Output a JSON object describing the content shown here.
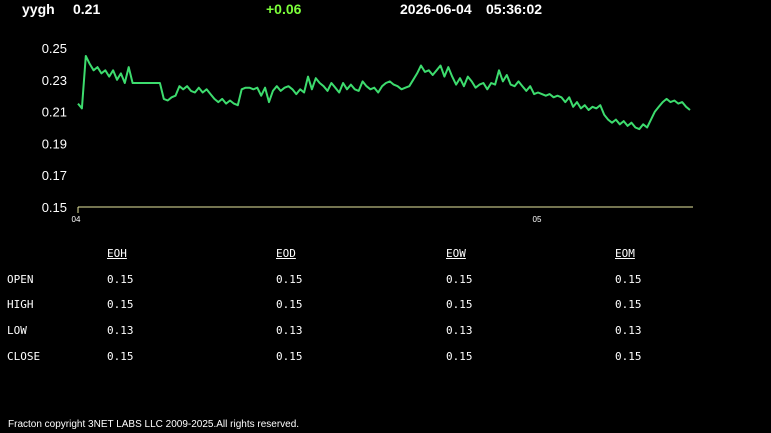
{
  "header": {
    "symbol": "yygh",
    "price": "0.21",
    "change": "+0.06",
    "date": "2026-06-04",
    "time": "05:36:02"
  },
  "chart_data": {
    "type": "line",
    "ylim": [
      0.15,
      0.25
    ],
    "y_ticks": [
      "0.25",
      "0.23",
      "0.21",
      "0.19",
      "0.17",
      "0.15"
    ],
    "x_tick_labels": [
      "04",
      "05"
    ],
    "line_color": "#3ddc6e",
    "series": [
      {
        "values": [
          0.215,
          0.212,
          0.245,
          0.24,
          0.236,
          0.238,
          0.234,
          0.236,
          0.232,
          0.236,
          0.23,
          0.234,
          0.228,
          0.238,
          0.228,
          0.228,
          0.228,
          0.228,
          0.228,
          0.228,
          0.228,
          0.228,
          0.218,
          0.217,
          0.219,
          0.22,
          0.226,
          0.224,
          0.226,
          0.223,
          0.222,
          0.225,
          0.222,
          0.224,
          0.221,
          0.218,
          0.216,
          0.218,
          0.215,
          0.217,
          0.215,
          0.214,
          0.224,
          0.225,
          0.225,
          0.224,
          0.225,
          0.22,
          0.225,
          0.216,
          0.223,
          0.226,
          0.223,
          0.225,
          0.226,
          0.224,
          0.221,
          0.224,
          0.222,
          0.232,
          0.224,
          0.231,
          0.228,
          0.226,
          0.223,
          0.228,
          0.225,
          0.222,
          0.228,
          0.224,
          0.227,
          0.224,
          0.223,
          0.229,
          0.226,
          0.224,
          0.225,
          0.222,
          0.226,
          0.228,
          0.229,
          0.227,
          0.226,
          0.224,
          0.225,
          0.226,
          0.23,
          0.234,
          0.239,
          0.235,
          0.236,
          0.233,
          0.236,
          0.239,
          0.232,
          0.238,
          0.232,
          0.227,
          0.231,
          0.226,
          0.232,
          0.229,
          0.225,
          0.227,
          0.228,
          0.224,
          0.228,
          0.227,
          0.236,
          0.229,
          0.233,
          0.227,
          0.226,
          0.229,
          0.226,
          0.223,
          0.226,
          0.221,
          0.222,
          0.221,
          0.22,
          0.221,
          0.219,
          0.22,
          0.219,
          0.216,
          0.219,
          0.213,
          0.216,
          0.212,
          0.214,
          0.211,
          0.213,
          0.212,
          0.214,
          0.208,
          0.205,
          0.203,
          0.205,
          0.202,
          0.204,
          0.201,
          0.203,
          0.2,
          0.199,
          0.202,
          0.2,
          0.205,
          0.21,
          0.213,
          0.216,
          0.218,
          0.216,
          0.217,
          0.215,
          0.216,
          0.213,
          0.211
        ]
      }
    ]
  },
  "table": {
    "columns": [
      "EOH",
      "EOD",
      "EOW",
      "EOM"
    ],
    "rows": [
      {
        "label": "OPEN",
        "values": [
          "0.15",
          "0.15",
          "0.15",
          "0.15"
        ]
      },
      {
        "label": "HIGH",
        "values": [
          "0.15",
          "0.15",
          "0.15",
          "0.15"
        ]
      },
      {
        "label": "LOW",
        "values": [
          "0.13",
          "0.13",
          "0.13",
          "0.13"
        ]
      },
      {
        "label": "CLOSE",
        "values": [
          "0.15",
          "0.15",
          "0.15",
          "0.15"
        ]
      }
    ]
  },
  "footer": "Fracton copyright 3NET LABS LLC 2009-2025.All rights reserved."
}
